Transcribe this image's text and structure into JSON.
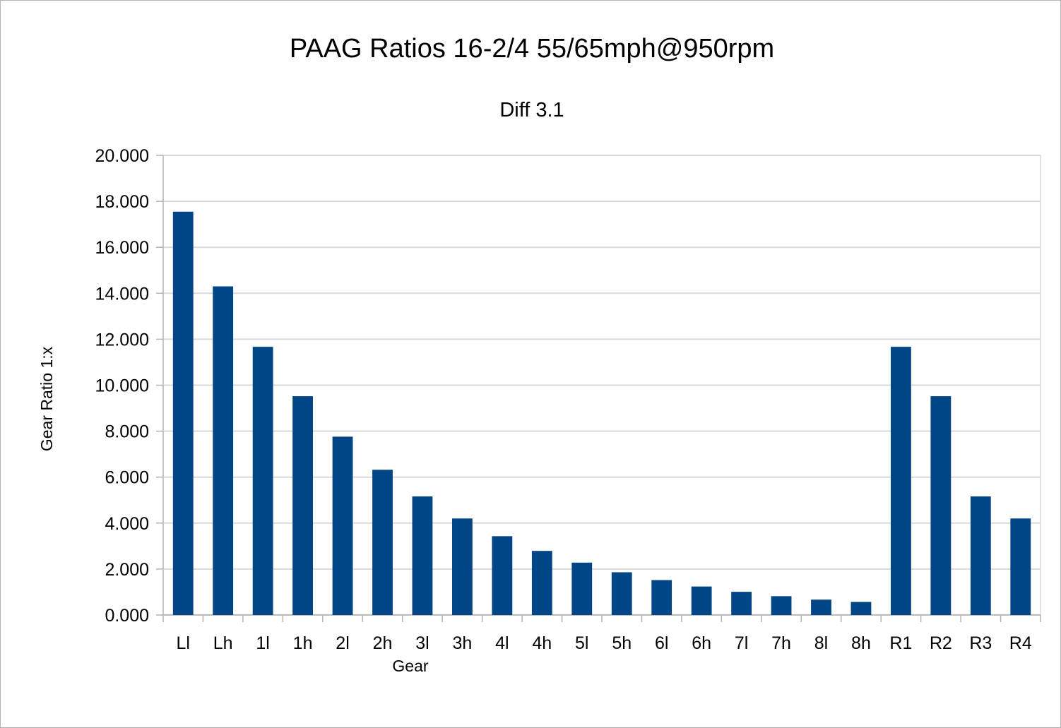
{
  "chart_data": {
    "type": "bar",
    "title": "PAAG Ratios 16-2/4 55/65mph@950rpm",
    "subtitle": "Diff 3.1",
    "xlabel": "Gear",
    "ylabel": "Gear Ratio 1:x",
    "ylim": [
      0,
      20
    ],
    "ytick_step": 2,
    "ytick_labels": [
      "0.000",
      "2.000",
      "4.000",
      "6.000",
      "8.000",
      "10.000",
      "12.000",
      "14.000",
      "16.000",
      "18.000",
      "20.000"
    ],
    "grid": true,
    "legend": "none",
    "categories": [
      "Ll",
      "Lh",
      "1l",
      "1h",
      "2l",
      "2h",
      "3l",
      "3h",
      "4l",
      "4h",
      "5l",
      "5h",
      "6l",
      "6h",
      "7l",
      "7h",
      "8l",
      "8h",
      "R1",
      "R2",
      "R3",
      "R4"
    ],
    "values": [
      17.55,
      14.3,
      11.67,
      9.52,
      7.76,
      6.32,
      5.16,
      4.2,
      3.43,
      2.79,
      2.28,
      1.86,
      1.52,
      1.24,
      1.01,
      0.82,
      0.67,
      0.57,
      11.67,
      9.52,
      5.16,
      4.2
    ],
    "colors": {
      "bar": "#004586",
      "grid": "#d9d9d9",
      "axis": "#b3b3b3"
    }
  }
}
